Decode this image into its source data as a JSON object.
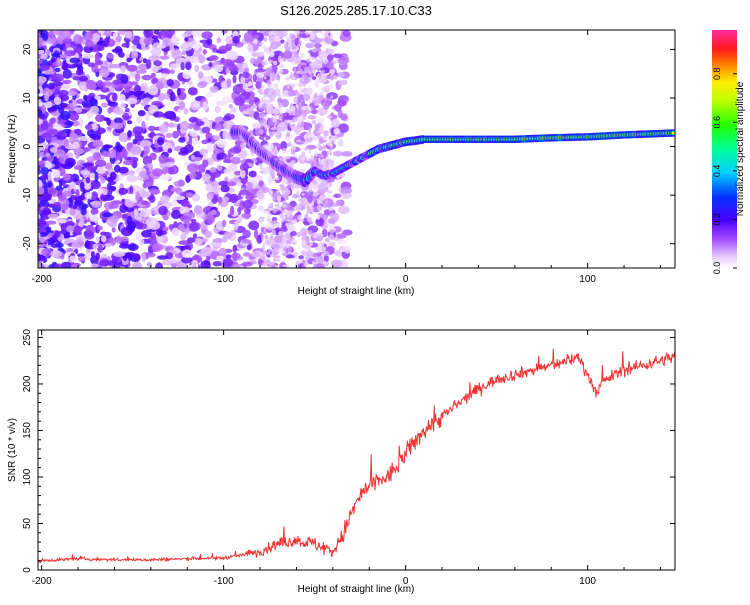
{
  "title": "S126.2025.285.17.10.C33",
  "chart_data": [
    {
      "type": "heatmap",
      "title": "S126.2025.285.17.10.C33",
      "xlabel": "Height of straight line (km)",
      "ylabel": "Frequency (Hz)",
      "xlim": [
        -202,
        148
      ],
      "ylim": [
        -25,
        24
      ],
      "xticks": [
        -200,
        -100,
        0,
        100
      ],
      "yticks": [
        20,
        10,
        0,
        -10,
        -20
      ],
      "grid": false,
      "description_series": {
        "name": "Dominant frequency track",
        "x": [
          -90,
          -80,
          -70,
          -62,
          -55,
          -50,
          -45,
          -40,
          -35,
          -30,
          -25,
          -20,
          -15,
          -10,
          -5,
          0,
          5,
          10,
          20,
          40,
          60,
          80,
          100,
          120,
          148
        ],
        "y": [
          3,
          -1,
          -4,
          -6,
          -7,
          -5,
          -6,
          -5.5,
          -4.5,
          -3.5,
          -2.5,
          -1.5,
          -0.5,
          0,
          0.5,
          1,
          1.2,
          1.5,
          1.5,
          1.5,
          1.5,
          1.8,
          2,
          2.4,
          2.8
        ]
      },
      "colorbar": {
        "label": "Normalized spectral amplitude",
        "range": [
          0.0,
          0.98
        ],
        "ticks": [
          0.0,
          0.2,
          0.4,
          0.6,
          0.8
        ]
      }
    },
    {
      "type": "line",
      "xlabel": "Height of straight line (km)",
      "ylabel": "SNR (10 * v/v)",
      "xlim": [
        -202,
        148
      ],
      "ylim": [
        0,
        258
      ],
      "xticks": [
        -200,
        -100,
        0,
        100
      ],
      "yticks": [
        0,
        50,
        100,
        150,
        200,
        250
      ],
      "grid": false,
      "series": [
        {
          "name": "SNR",
          "color": "#ee3333",
          "x": [
            -202,
            -180,
            -160,
            -140,
            -120,
            -100,
            -90,
            -80,
            -70,
            -60,
            -50,
            -40,
            -35,
            -30,
            -25,
            -20,
            -15,
            -10,
            -5,
            0,
            10,
            20,
            30,
            40,
            50,
            60,
            70,
            80,
            90,
            95,
            100,
            105,
            110,
            120,
            130,
            140,
            148
          ],
          "values": [
            10,
            12,
            11,
            11,
            12,
            13,
            16,
            20,
            28,
            32,
            28,
            20,
            35,
            60,
            80,
            90,
            95,
            100,
            110,
            125,
            150,
            165,
            180,
            195,
            205,
            210,
            215,
            220,
            225,
            230,
            210,
            190,
            205,
            215,
            220,
            225,
            230
          ]
        }
      ]
    }
  ]
}
